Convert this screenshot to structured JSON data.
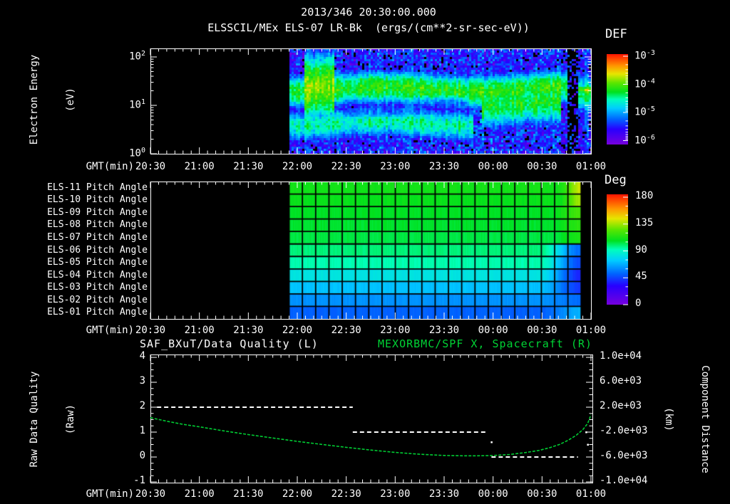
{
  "header": {
    "title": "2013/346 20:30:00.000",
    "subtitle": "ELSSCIL/MEx ELS-07 LR-Bk  (ergs/(cm**2-sr-sec-eV))"
  },
  "axis": {
    "x_label": "GMT(min)",
    "x_ticks": [
      "20:30",
      "21:00",
      "21:30",
      "22:00",
      "22:30",
      "23:00",
      "23:30",
      "00:00",
      "00:30",
      "01:00"
    ],
    "x_minor_step_min": 5,
    "x_major_step_min": 30,
    "x_total_minutes": 270
  },
  "colormap": [
    [
      0.0,
      119,
      0,
      221
    ],
    [
      0.17,
      40,
      0,
      255
    ],
    [
      0.28,
      0,
      100,
      255
    ],
    [
      0.4,
      0,
      204,
      255
    ],
    [
      0.5,
      0,
      255,
      187
    ],
    [
      0.58,
      0,
      225,
      30
    ],
    [
      0.68,
      90,
      230,
      0
    ],
    [
      0.78,
      230,
      230,
      0
    ],
    [
      0.87,
      255,
      150,
      0
    ],
    [
      1.0,
      255,
      20,
      0
    ]
  ],
  "panels": {
    "energy": {
      "ylabel_line1": "Electron Energy",
      "ylabel_line2": "(eV)",
      "y_ticks": [
        {
          "base": "10",
          "exp": "2",
          "logE": 2
        },
        {
          "base": "10",
          "exp": "1",
          "logE": 1
        },
        {
          "base": "10",
          "exp": "0",
          "logE": 0
        }
      ],
      "colorbar": {
        "label": "DEF",
        "ticks": [
          {
            "base": "10",
            "exp": "-3"
          },
          {
            "base": "10",
            "exp": "-4"
          },
          {
            "base": "10",
            "exp": "-5"
          },
          {
            "base": "10",
            "exp": "-6"
          }
        ]
      }
    },
    "pitch": {
      "colorbar": {
        "label": "Deg",
        "ticks": [
          "180",
          "135",
          "90",
          "45",
          "0"
        ]
      }
    },
    "quality": {
      "title_left": "SAF_BXuT/Data Quality (L)",
      "title_right": "MEXORBMC/SPF X, Spacecraft (R)",
      "ylabel_line1": "Raw Data Quality",
      "ylabel_line2": "(Raw)",
      "y_ticks_left": [
        "4",
        "3",
        "2",
        "1",
        "0",
        "-1"
      ],
      "ylabel_right_line1": "Component Distance",
      "ylabel_right_line2": "(km)",
      "y_ticks_right": [
        "1.0e+04",
        "6.0e+03",
        "2.0e+03",
        "-2.0e+03",
        "-6.0e+03",
        "-1.0e+04"
      ]
    }
  },
  "chart_data": [
    {
      "type": "heatmap",
      "name": "electron-energy-spectrogram",
      "title": "ELSSCIL/MEx ELS-07 LR-Bk",
      "units": "ergs/(cm**2-sr-sec-eV)",
      "xlabel": "GMT(min)",
      "ylabel": "Electron Energy (eV)",
      "x_start": "20:30",
      "x_end": "01:00",
      "y_scale": "log",
      "y_range_eV": [
        1,
        150
      ],
      "value_scale": "log10",
      "value_range": [
        -6.5,
        -3
      ],
      "data_t_range": [
        85,
        270
      ],
      "background": {
        "level": -6.25,
        "noise": 0.85
      },
      "features": [
        {
          "name": "main-band",
          "t": [
            85,
            256
          ],
          "logE_center": 1.33,
          "sigma": 0.3,
          "peak": -4.35
        },
        {
          "name": "onset-burst",
          "t": [
            95,
            113
          ],
          "logE_center": 1.4,
          "sigma": 0.6,
          "peak": -4.1
        },
        {
          "name": "onset-core",
          "t": [
            96,
            105
          ],
          "logE_center": 1.42,
          "sigma": 0.22,
          "peak": -3.92
        },
        {
          "name": "low-band",
          "t": [
            85,
            198
          ],
          "logE_center": 0.62,
          "sigma": 0.3,
          "peak": -4.75
        },
        {
          "name": "evening-blob",
          "t": [
            203,
            252
          ],
          "logE_center": 1.05,
          "sigma": 0.42,
          "peak": -4.45
        },
        {
          "name": "edge-strip",
          "t": [
            262,
            270
          ],
          "logE_center": 1.2,
          "sigma": 0.34,
          "peak": -4.55
        },
        {
          "name": "edge-line",
          "t": [
            262,
            270
          ],
          "logE_center": 1.28,
          "sigma": 0.08,
          "peak": -4.05
        }
      ],
      "dark_lane": {
        "t": [
          112,
          200
        ],
        "logE_center": 0.95,
        "sigma": 0.17,
        "cap": -5.6
      },
      "gap": {
        "t": [
          256,
          262
        ]
      },
      "colorbar": {
        "label": "DEF",
        "tick_log_values": [
          -3,
          -4,
          -5,
          -6
        ]
      }
    },
    {
      "type": "heatmap",
      "name": "pitch-angle-panel",
      "data_t_range": [
        85,
        264
      ],
      "n_columns": 22,
      "angle_range": [
        0,
        180
      ],
      "rows": [
        {
          "label": "ELS-11 Pitch Angle",
          "base": 108,
          "edge": 138,
          "t_start": 250
        },
        {
          "label": "ELS-10 Pitch Angle",
          "base": 106,
          "edge": 132,
          "t_start": 250
        },
        {
          "label": "ELS-09 Pitch Angle",
          "base": 104,
          "edge": 118,
          "t_start": 245
        },
        {
          "label": "ELS-08 Pitch Angle",
          "base": 103,
          "edge": 113,
          "t_start": 245
        },
        {
          "label": "ELS-07 Pitch Angle",
          "base": 101,
          "edge": 110,
          "t_start": 245
        },
        {
          "label": "ELS-06 Pitch Angle",
          "base": 96,
          "edge": 52,
          "t_start": 238
        },
        {
          "label": "ELS-05 Pitch Angle",
          "base": 91,
          "edge": 45,
          "t_start": 238
        },
        {
          "label": "ELS-04 Pitch Angle",
          "base": 80,
          "edge": 38,
          "t_start": 238
        },
        {
          "label": "ELS-03 Pitch Angle",
          "base": 70,
          "edge": 42,
          "t_start": 238
        },
        {
          "label": "ELS-02 Pitch Angle",
          "base": 60,
          "edge": 52,
          "t_start": 240
        },
        {
          "label": "ELS-01 Pitch Angle",
          "base": 50,
          "edge": 66,
          "t_start": 240
        }
      ],
      "colorbar": {
        "label": "Deg",
        "ticks": [
          180,
          135,
          90,
          45,
          0
        ]
      }
    },
    {
      "type": "line",
      "name": "quality-and-spacecraft-distance",
      "series": [
        {
          "name": "SAF_BXuT/Data Quality (L)",
          "axis": "left",
          "color": "#ffffff",
          "style": "dashed",
          "segments": [
            {
              "t": [
                4,
                124
              ],
              "value": 2
            },
            {
              "t": [
                124,
                206
              ],
              "value": 1
            },
            {
              "t": [
                209,
                262
              ],
              "value": 0
            }
          ],
          "stray_points": [
            {
              "t": 209,
              "value": 0.6
            },
            {
              "t": 267,
              "value": 1.0
            },
            {
              "t": 268,
              "value": 0.5
            }
          ]
        },
        {
          "name": "MEXORBMC/SPF X, Spacecraft (R)",
          "axis": "right",
          "color": "#00cc33",
          "style": "dotted",
          "points_t_km": [
            [
              0,
              320
            ],
            [
              10,
              -250
            ],
            [
              20,
              -750
            ],
            [
              30,
              -1150
            ],
            [
              45,
              -1800
            ],
            [
              60,
              -2400
            ],
            [
              75,
              -2950
            ],
            [
              90,
              -3480
            ],
            [
              105,
              -3980
            ],
            [
              120,
              -4440
            ],
            [
              135,
              -4880
            ],
            [
              150,
              -5260
            ],
            [
              165,
              -5560
            ],
            [
              180,
              -5750
            ],
            [
              192,
              -5805
            ],
            [
              200,
              -5810
            ],
            [
              210,
              -5760
            ],
            [
              220,
              -5600
            ],
            [
              230,
              -5280
            ],
            [
              238,
              -4950
            ],
            [
              245,
              -4480
            ],
            [
              251,
              -3950
            ],
            [
              256,
              -3300
            ],
            [
              261,
              -2500
            ],
            [
              265,
              -1600
            ],
            [
              268,
              -600
            ],
            [
              270,
              800
            ]
          ]
        }
      ],
      "left_axis": {
        "label": "Raw Data Quality (Raw)",
        "range": [
          -1,
          4
        ],
        "ticks": [
          4,
          3,
          2,
          1,
          0,
          -1
        ]
      },
      "right_axis": {
        "label": "Component Distance (km)",
        "range": [
          -10000,
          10000
        ],
        "ticks": [
          10000,
          6000,
          2000,
          -2000,
          -6000,
          -10000
        ]
      }
    }
  ]
}
